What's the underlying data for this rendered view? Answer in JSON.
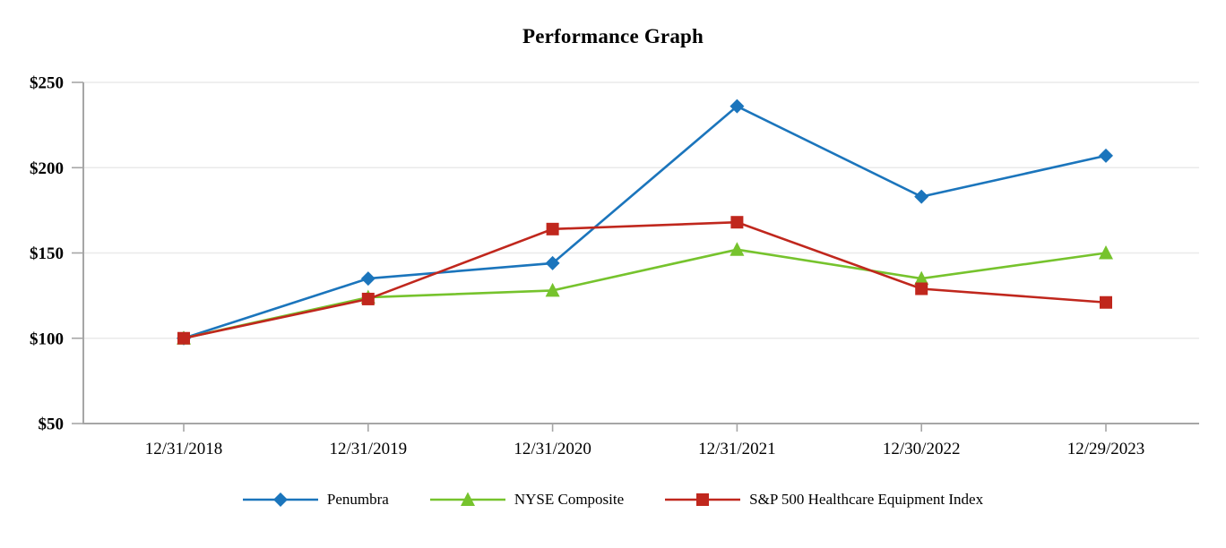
{
  "chart_data": {
    "type": "line",
    "title": "Performance Graph",
    "categories": [
      "12/31/2018",
      "12/31/2019",
      "12/31/2020",
      "12/31/2021",
      "12/30/2022",
      "12/29/2023"
    ],
    "series": [
      {
        "name": "Penumbra",
        "color": "#1B75BC",
        "marker": "diamond",
        "values": [
          100,
          135,
          144,
          236,
          183,
          207
        ]
      },
      {
        "name": "NYSE Composite",
        "color": "#76C32D",
        "marker": "triangle",
        "values": [
          100,
          124,
          128,
          152,
          135,
          150
        ]
      },
      {
        "name": "S&P 500 Healthcare Equipment Index",
        "color": "#C0271D",
        "marker": "square",
        "values": [
          100,
          123,
          164,
          168,
          129,
          121
        ]
      }
    ],
    "ylim": [
      50,
      250
    ],
    "yticks": [
      50,
      100,
      150,
      200,
      250
    ],
    "ytick_prefix": "$",
    "xlabel": "",
    "ylabel": "",
    "grid": "horizontal",
    "legend_position": "bottom",
    "gridline_color": "#EAEAEA",
    "axis_color": "#A6A6A6",
    "text_color": "#000000"
  }
}
